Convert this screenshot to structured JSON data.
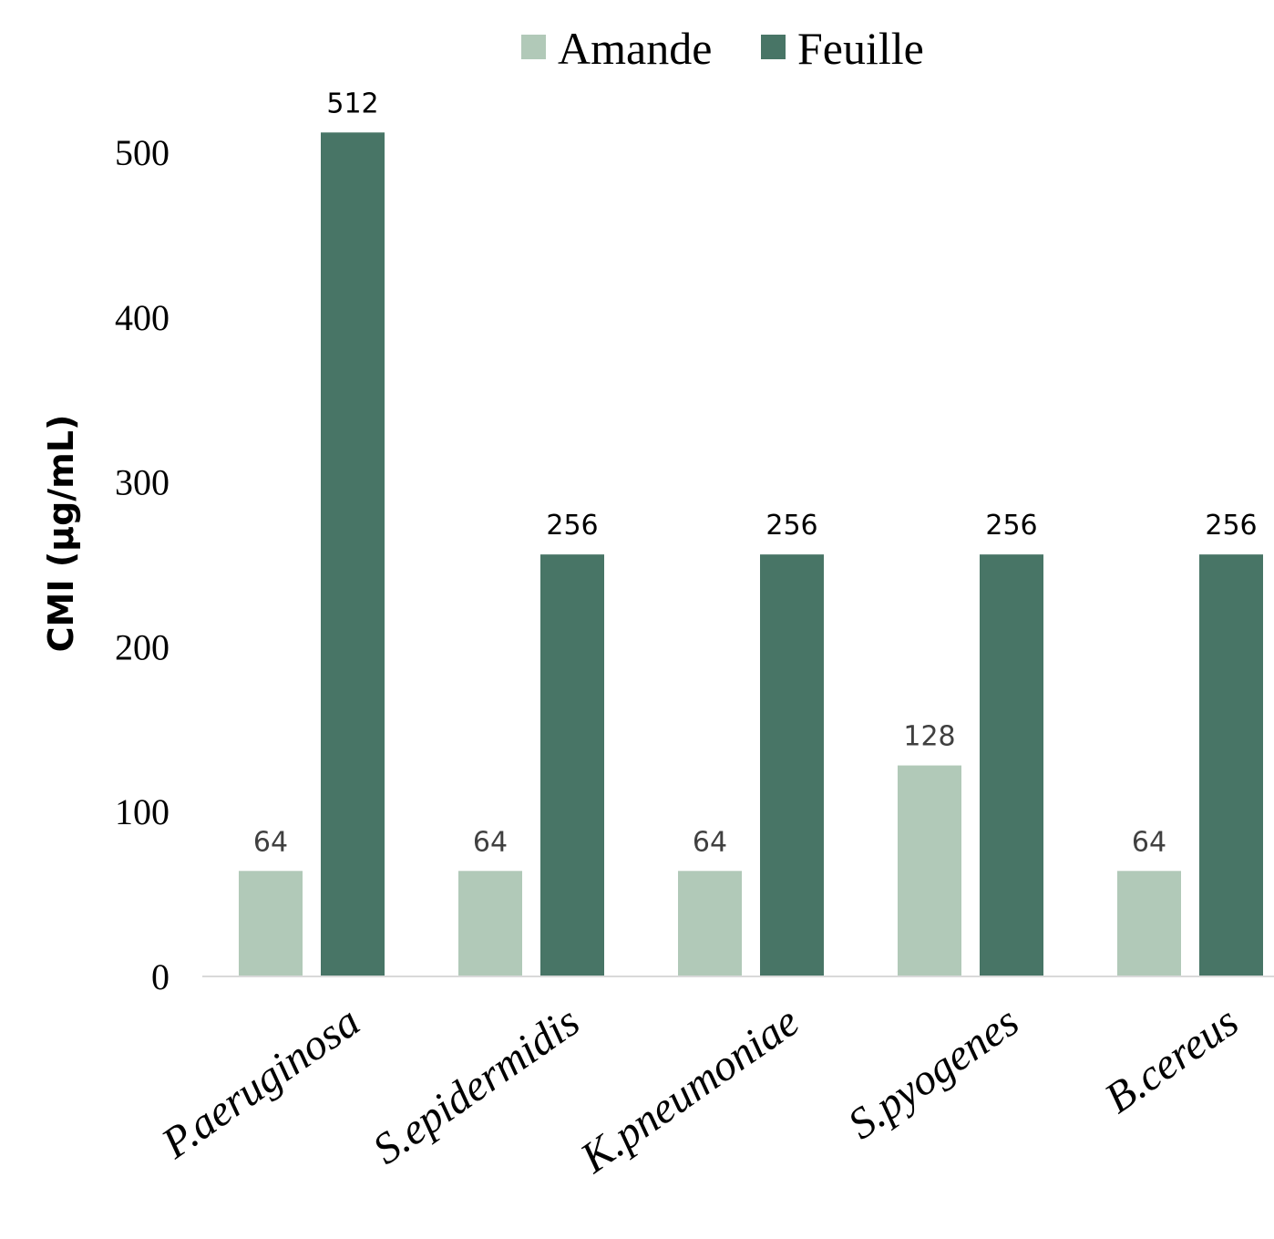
{
  "chart_data": {
    "type": "bar",
    "title": "",
    "xlabel": "",
    "ylabel": "CMI (µg/mL)",
    "categories": [
      "P.aeruginosa",
      "S.epidermidis",
      "K.pneumoniae",
      "S.pyogenes",
      "B.cereus"
    ],
    "series": [
      {
        "name": "Amande",
        "values": [
          64,
          64,
          64,
          128,
          64
        ],
        "color": "#b1c9b8",
        "label_color": "#404040"
      },
      {
        "name": "Feuille",
        "values": [
          512,
          256,
          256,
          256,
          256
        ],
        "color": "#487566",
        "label_color": "#000000"
      }
    ],
    "ylim": [
      0,
      500
    ],
    "yticks": [
      0,
      100,
      200,
      300,
      400,
      500
    ],
    "grid": false,
    "legend": "top-center",
    "axis_color": "#d9d9d9"
  }
}
